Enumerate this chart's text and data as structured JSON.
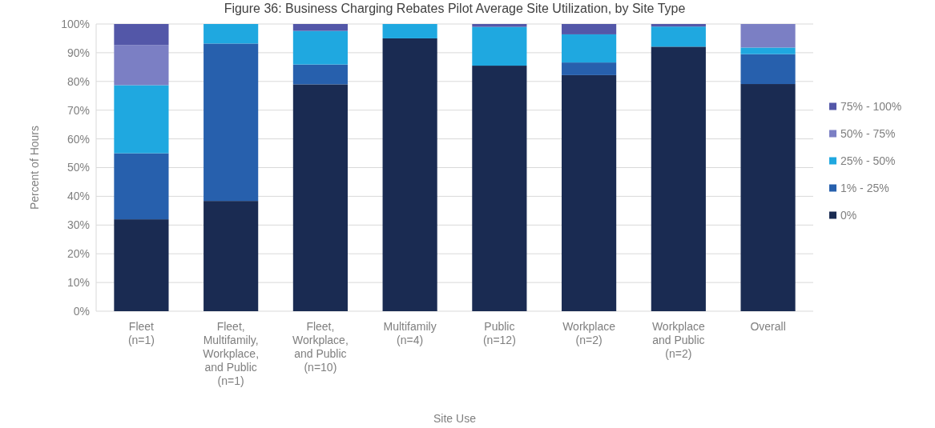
{
  "chart_data": {
    "type": "bar",
    "stacked": true,
    "title": "Figure 36: Business Charging Rebates Pilot Average Site Utilization, by Site Type",
    "xlabel": "Site Use",
    "ylabel": "Percent of Hours",
    "categories": [
      "Fleet\n(n=1)",
      "Fleet,\nMultifamily,\nWorkplace,\nand Public\n(n=1)",
      "Fleet,\nWorkplace,\nand Public\n(n=10)",
      "Multifamily\n(n=4)",
      "Public\n(n=12)",
      "Workplace\n(n=2)",
      "Workplace\nand Public\n(n=2)",
      "Overall"
    ],
    "series": [
      {
        "name": "0%",
        "color": "#1a2b52",
        "values": [
          32,
          38.4,
          79,
          95,
          85.5,
          82.2,
          92.1,
          79.1
        ]
      },
      {
        "name": "1% - 25%",
        "color": "#2760ad",
        "values": [
          23,
          54.8,
          6.9,
          0,
          0,
          4.4,
          0,
          10.4
        ]
      },
      {
        "name": "25% - 50%",
        "color": "#1fa8e0",
        "values": [
          23.7,
          6.8,
          11.7,
          5,
          13.5,
          9.8,
          7,
          2.3
        ]
      },
      {
        "name": "50% - 75%",
        "color": "#7b7fc4",
        "values": [
          14,
          0,
          0,
          0,
          0,
          0,
          0,
          8.2
        ]
      },
      {
        "name": "75% - 100%",
        "color": "#5357a8",
        "values": [
          7.3,
          0,
          2.4,
          0,
          1,
          3.6,
          0.9,
          0
        ]
      }
    ],
    "ylim": [
      0,
      100
    ],
    "yticks": [
      {
        "value": 0,
        "label": "0%"
      },
      {
        "value": 10,
        "label": "10%"
      },
      {
        "value": 20,
        "label": "20%"
      },
      {
        "value": 30,
        "label": "30%"
      },
      {
        "value": 40,
        "label": "40%"
      },
      {
        "value": 50,
        "label": "50%"
      },
      {
        "value": 60,
        "label": "60%"
      },
      {
        "value": 70,
        "label": "70%"
      },
      {
        "value": 80,
        "label": "80%"
      },
      {
        "value": 90,
        "label": "90%"
      },
      {
        "value": 100,
        "label": "100%"
      }
    ],
    "grid": "y",
    "legend": "right"
  }
}
